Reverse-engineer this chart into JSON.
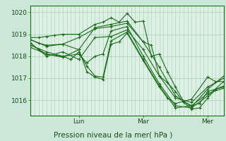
{
  "bg_color": "#cce8d8",
  "plot_bg_color": "#ddf0e4",
  "grid_color": "#aaccb8",
  "line_color": "#1a6b1a",
  "marker_color": "#1a6b1a",
  "ylabel_ticks": [
    1016,
    1017,
    1018,
    1019,
    1020
  ],
  "xlim": [
    0,
    144
  ],
  "ylim": [
    1015.3,
    1020.3
  ],
  "xlabel": "Pression niveau de la mer( hPa )",
  "xlabel_fontsize": 7.5,
  "tick_fontsize": 6.5,
  "day_labels": [
    "Lun",
    "Mar",
    "Mer"
  ],
  "day_positions": [
    36,
    84,
    132
  ],
  "series": [
    [
      0,
      1018.85,
      6,
      1018.85,
      12,
      1018.9,
      18,
      1018.95,
      24,
      1019.0,
      36,
      1019.0,
      48,
      1019.45,
      54,
      1019.55,
      60,
      1019.75,
      66,
      1019.55,
      72,
      1019.95,
      78,
      1019.55,
      84,
      1019.6,
      90,
      1018.0,
      96,
      1018.1,
      102,
      1017.3,
      108,
      1016.6,
      114,
      1015.95,
      120,
      1015.75,
      126,
      1015.85,
      132,
      1016.4,
      144,
      1016.6
    ],
    [
      0,
      1018.75,
      6,
      1018.6,
      12,
      1018.5,
      24,
      1018.55,
      36,
      1018.85,
      48,
      1019.25,
      60,
      1019.35,
      72,
      1019.5,
      84,
      1018.65,
      90,
      1018.5,
      96,
      1017.1,
      102,
      1016.8,
      108,
      1016.4,
      114,
      1015.9,
      120,
      1015.6,
      126,
      1015.65,
      132,
      1016.1,
      138,
      1016.5,
      144,
      1016.65
    ],
    [
      0,
      1018.6,
      6,
      1018.3,
      12,
      1018.1,
      24,
      1018.0,
      36,
      1018.1,
      42,
      1017.7,
      48,
      1018.0,
      54,
      1018.1,
      60,
      1019.15,
      72,
      1019.35,
      84,
      1018.0,
      96,
      1016.75,
      108,
      1015.75,
      120,
      1015.65,
      132,
      1016.2,
      144,
      1016.85
    ],
    [
      0,
      1018.5,
      12,
      1018.2,
      24,
      1018.0,
      30,
      1017.85,
      36,
      1018.2,
      42,
      1017.55,
      48,
      1017.1,
      54,
      1017.05,
      60,
      1018.7,
      72,
      1019.1,
      84,
      1017.85,
      96,
      1016.65,
      108,
      1015.65,
      120,
      1015.75,
      132,
      1016.3,
      144,
      1016.55
    ],
    [
      0,
      1018.4,
      12,
      1018.1,
      24,
      1017.95,
      36,
      1018.3,
      42,
      1017.3,
      48,
      1017.05,
      54,
      1016.95,
      60,
      1018.55,
      66,
      1018.65,
      72,
      1019.05,
      84,
      1017.8,
      96,
      1016.6,
      102,
      1016.1,
      108,
      1015.85,
      120,
      1016.05,
      132,
      1017.05,
      138,
      1016.85,
      144,
      1016.85
    ],
    [
      0,
      1018.75,
      12,
      1018.45,
      24,
      1018.55,
      36,
      1018.3,
      48,
      1019.3,
      60,
      1019.45,
      72,
      1019.6,
      84,
      1018.65,
      96,
      1017.5,
      108,
      1016.2,
      120,
      1015.7,
      132,
      1016.5,
      144,
      1017.1
    ],
    [
      0,
      1018.6,
      12,
      1018.0,
      24,
      1018.2,
      36,
      1017.85,
      48,
      1018.85,
      60,
      1018.9,
      72,
      1019.2,
      84,
      1018.3,
      96,
      1017.1,
      108,
      1016.1,
      120,
      1015.9,
      132,
      1016.6,
      144,
      1017.0
    ]
  ]
}
